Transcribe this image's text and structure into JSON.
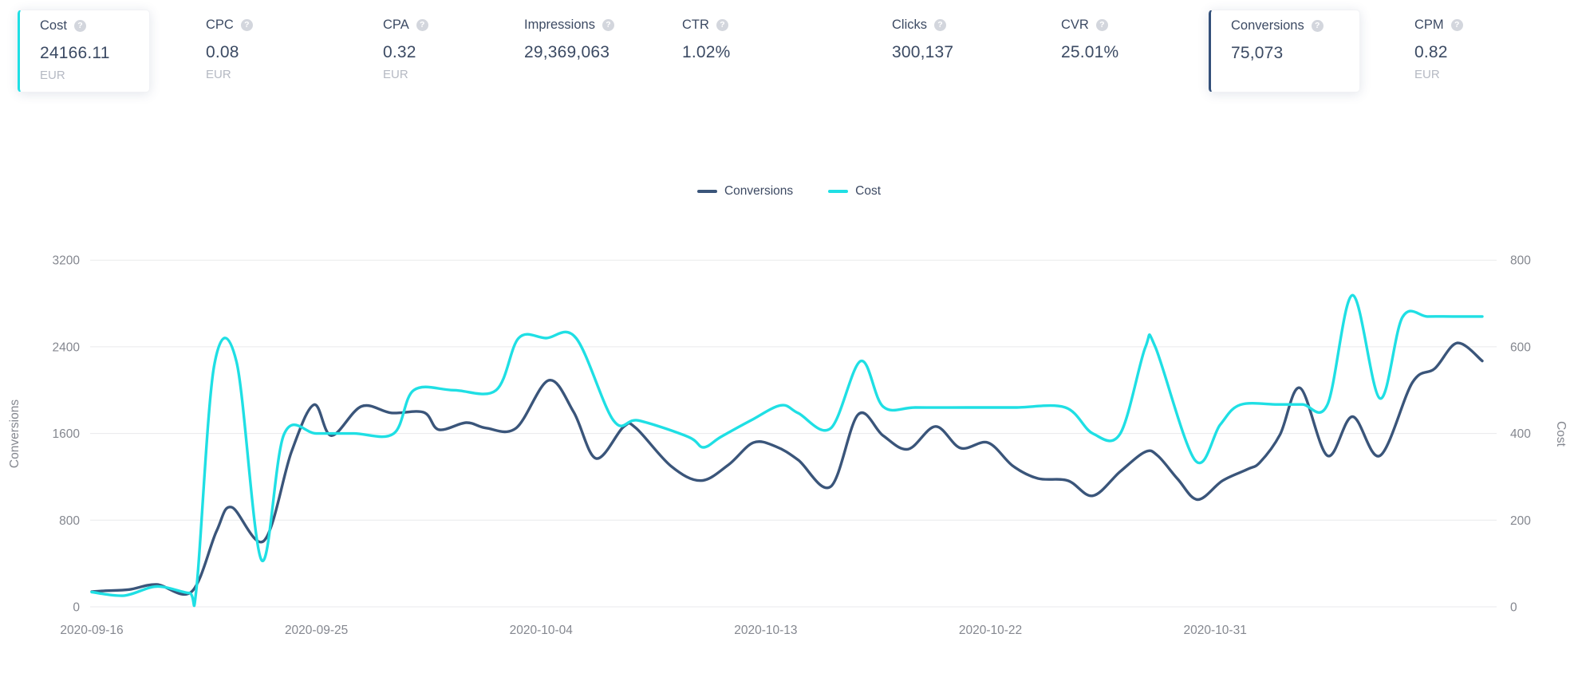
{
  "metrics": {
    "help_icon": "?",
    "items": [
      {
        "label": "Cost",
        "value": "24166.11",
        "unit": "EUR",
        "selected": true,
        "accent": "#1fdfe4"
      },
      {
        "label": "CPC",
        "value": "0.08",
        "unit": "EUR",
        "selected": false
      },
      {
        "label": "CPA",
        "value": "0.32",
        "unit": "EUR",
        "selected": false
      },
      {
        "label": "Impressions",
        "value": "29,369,063",
        "unit": "",
        "selected": false
      },
      {
        "label": "CTR",
        "value": "1.02%",
        "unit": "",
        "selected": false
      },
      {
        "label": "Clicks",
        "value": "300,137",
        "unit": "",
        "selected": false
      },
      {
        "label": "CVR",
        "value": "25.01%",
        "unit": "",
        "selected": false
      },
      {
        "label": "Conversions",
        "value": "75,073",
        "unit": "",
        "selected": true,
        "accent": "#33507a"
      },
      {
        "label": "CPM",
        "value": "0.82",
        "unit": "EUR",
        "selected": false
      }
    ]
  },
  "legend": {
    "items": [
      {
        "label": "Conversions",
        "color": "#3a557a"
      },
      {
        "label": "Cost",
        "color": "#1fdfe4"
      }
    ]
  },
  "chart_data": {
    "type": "line",
    "smooth": true,
    "grid": true,
    "legend_position": "top-center",
    "x_axis": {
      "unit": "date",
      "tick_labels": [
        "2020-09-16",
        "2020-09-25",
        "2020-10-04",
        "2020-10-13",
        "2020-10-22",
        "2020-10-31"
      ],
      "tick_days": [
        0,
        9,
        18,
        27,
        36,
        45
      ],
      "domain_days": [
        0,
        55.7
      ]
    },
    "y_axis_left": {
      "label": "Conversions",
      "min": 0,
      "max": 3200,
      "ticks": [
        0,
        800,
        1600,
        2400,
        3200
      ]
    },
    "y_axis_right": {
      "label": "Cost",
      "min": 0,
      "max": 800,
      "ticks": [
        0,
        200,
        400,
        600,
        800
      ]
    },
    "series": [
      {
        "name": "Conversions",
        "axis": "left",
        "color": "#3a557a",
        "points": [
          [
            0,
            140
          ],
          [
            0.5,
            148
          ],
          [
            1.5,
            160
          ],
          [
            2.6,
            206
          ],
          [
            4,
            140
          ],
          [
            5,
            700
          ],
          [
            5.6,
            920
          ],
          [
            6.9,
            610
          ],
          [
            8,
            1430
          ],
          [
            8.9,
            1865
          ],
          [
            9.6,
            1580
          ],
          [
            10.8,
            1850
          ],
          [
            12,
            1790
          ],
          [
            13.3,
            1795
          ],
          [
            13.9,
            1635
          ],
          [
            15,
            1700
          ],
          [
            15.8,
            1650
          ],
          [
            17,
            1650
          ],
          [
            18.3,
            2090
          ],
          [
            19.3,
            1800
          ],
          [
            20.2,
            1370
          ],
          [
            21.3,
            1660
          ],
          [
            21.8,
            1650
          ],
          [
            23.2,
            1300
          ],
          [
            24.4,
            1165
          ],
          [
            25.5,
            1310
          ],
          [
            26.5,
            1515
          ],
          [
            27.4,
            1480
          ],
          [
            28.3,
            1355
          ],
          [
            29.6,
            1110
          ],
          [
            30.7,
            1775
          ],
          [
            31.7,
            1580
          ],
          [
            32.7,
            1455
          ],
          [
            33.8,
            1665
          ],
          [
            34.8,
            1465
          ],
          [
            35.9,
            1515
          ],
          [
            36.9,
            1300
          ],
          [
            37.9,
            1185
          ],
          [
            39.1,
            1165
          ],
          [
            40.1,
            1025
          ],
          [
            41.2,
            1250
          ],
          [
            42.2,
            1430
          ],
          [
            42.7,
            1395
          ],
          [
            43.5,
            1180
          ],
          [
            44.3,
            990
          ],
          [
            45.3,
            1165
          ],
          [
            46.3,
            1270
          ],
          [
            46.8,
            1335
          ],
          [
            47.6,
            1590
          ],
          [
            48.4,
            2020
          ],
          [
            49.5,
            1395
          ],
          [
            50.5,
            1755
          ],
          [
            51.6,
            1395
          ],
          [
            52.9,
            2070
          ],
          [
            53.8,
            2200
          ],
          [
            54.7,
            2435
          ],
          [
            55.7,
            2270
          ]
        ]
      },
      {
        "name": "Cost",
        "axis": "right",
        "color": "#1fdfe4",
        "points": [
          [
            0,
            34
          ],
          [
            1.3,
            26
          ],
          [
            2.6,
            47
          ],
          [
            3.9,
            32
          ],
          [
            4.2,
            45
          ],
          [
            4.9,
            555
          ],
          [
            5.8,
            565
          ],
          [
            6.8,
            108
          ],
          [
            7.7,
            398
          ],
          [
            9,
            400
          ],
          [
            10.5,
            400
          ],
          [
            12.1,
            400
          ],
          [
            12.9,
            500
          ],
          [
            14.5,
            500
          ],
          [
            16.2,
            500
          ],
          [
            17.1,
            620
          ],
          [
            18.2,
            620
          ],
          [
            19.4,
            620
          ],
          [
            20.9,
            430
          ],
          [
            21.9,
            430
          ],
          [
            23.9,
            392
          ],
          [
            24.5,
            368
          ],
          [
            25.2,
            392
          ],
          [
            26.4,
            430
          ],
          [
            27.6,
            465
          ],
          [
            28.3,
            447
          ],
          [
            29.6,
            412
          ],
          [
            30.8,
            567
          ],
          [
            31.7,
            462
          ],
          [
            33,
            460
          ],
          [
            35,
            460
          ],
          [
            37,
            460
          ],
          [
            39,
            460
          ],
          [
            40.1,
            400
          ],
          [
            41.2,
            400
          ],
          [
            42.2,
            598
          ],
          [
            42.6,
            600
          ],
          [
            44.2,
            338
          ],
          [
            45.2,
            420
          ],
          [
            46,
            466
          ],
          [
            47.5,
            467
          ],
          [
            48.5,
            467
          ],
          [
            49.5,
            467
          ],
          [
            50.5,
            719
          ],
          [
            51.6,
            481
          ],
          [
            52.5,
            668
          ],
          [
            53.5,
            670
          ],
          [
            54.5,
            670
          ],
          [
            55.7,
            670
          ]
        ]
      }
    ]
  }
}
